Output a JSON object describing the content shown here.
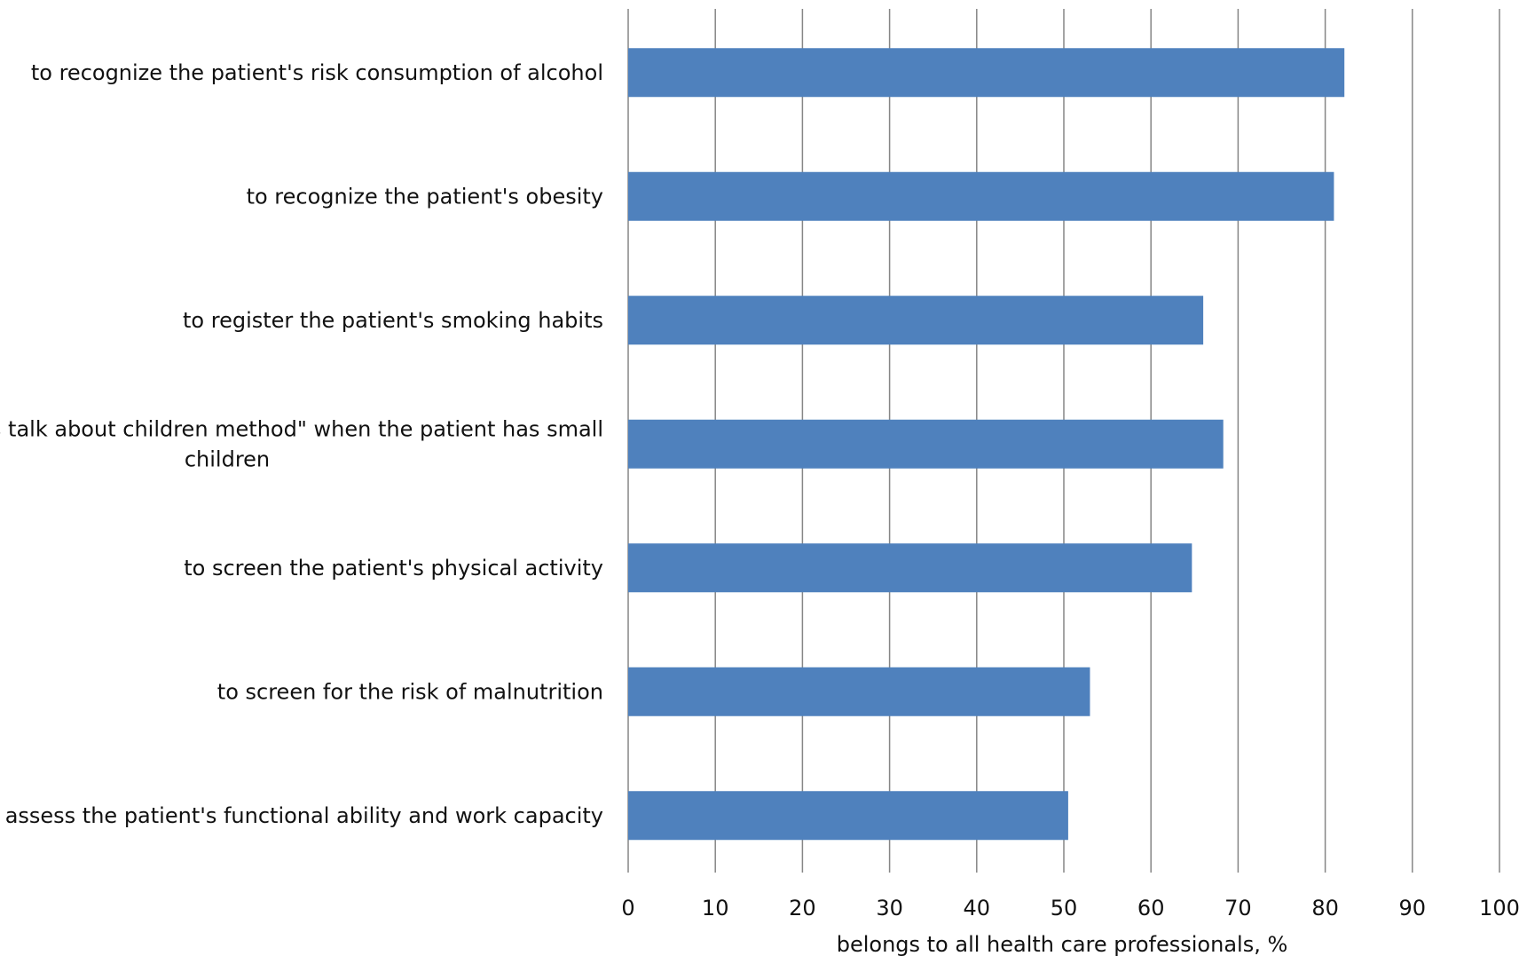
{
  "chart_data": {
    "type": "bar",
    "orientation": "horizontal",
    "categories": [
      [
        "to recognize the patient's risk consumption of alcohol"
      ],
      [
        "to recognize the patient's obesity"
      ],
      [
        "to register the patient's smoking habits"
      ],
      [
        "´s  talk  about  children method\" when the patient has small",
        "children"
      ],
      [
        "to screen the patient's physical activity"
      ],
      [
        "to screen for the risk of malnutrition"
      ],
      [
        "to assess the patient's functional ability and work capacity"
      ]
    ],
    "values": [
      82.2,
      81,
      66,
      68.3,
      64.7,
      53,
      50.5
    ],
    "xlabel": "belongs to all health care professionals, %",
    "xlim": [
      0,
      100
    ],
    "xticks": [
      0,
      10,
      20,
      30,
      40,
      50,
      60,
      70,
      80,
      90,
      100
    ],
    "grid": "vertical",
    "bar_color": "#4F81BD",
    "grid_color": "#868686"
  }
}
